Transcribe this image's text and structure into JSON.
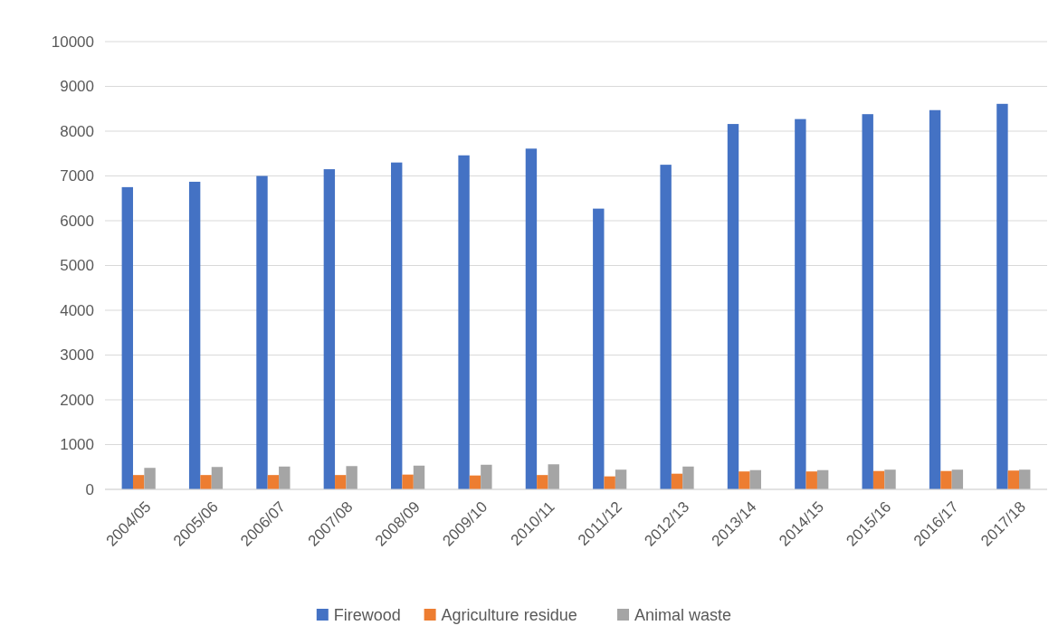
{
  "chart_data": {
    "type": "bar",
    "categories": [
      "2004/05",
      "2005/06",
      "2006/07",
      "2007/08",
      "2008/09",
      "2009/10",
      "2010/11",
      "2011/12",
      "2012/13",
      "2013/14",
      "2014/15",
      "2015/16",
      "2016/17",
      "2017/18"
    ],
    "series": [
      {
        "name": "Firewood",
        "color": "#4472c4",
        "values": [
          6750,
          6870,
          7000,
          7150,
          7300,
          7460,
          7610,
          6270,
          7250,
          8160,
          8270,
          8380,
          8470,
          8610
        ]
      },
      {
        "name": "Agriculture residue",
        "color": "#ed7d31",
        "values": [
          320,
          320,
          320,
          320,
          330,
          310,
          320,
          290,
          350,
          400,
          400,
          410,
          410,
          420
        ]
      },
      {
        "name": "Animal waste",
        "color": "#a5a5a5",
        "values": [
          480,
          500,
          510,
          520,
          530,
          550,
          560,
          440,
          510,
          430,
          430,
          440,
          440,
          440
        ]
      }
    ],
    "ylim": [
      0,
      10000
    ],
    "yticks": [
      0,
      1000,
      2000,
      3000,
      4000,
      5000,
      6000,
      7000,
      8000,
      9000,
      10000
    ],
    "grid": "y",
    "legend": "bottom"
  }
}
